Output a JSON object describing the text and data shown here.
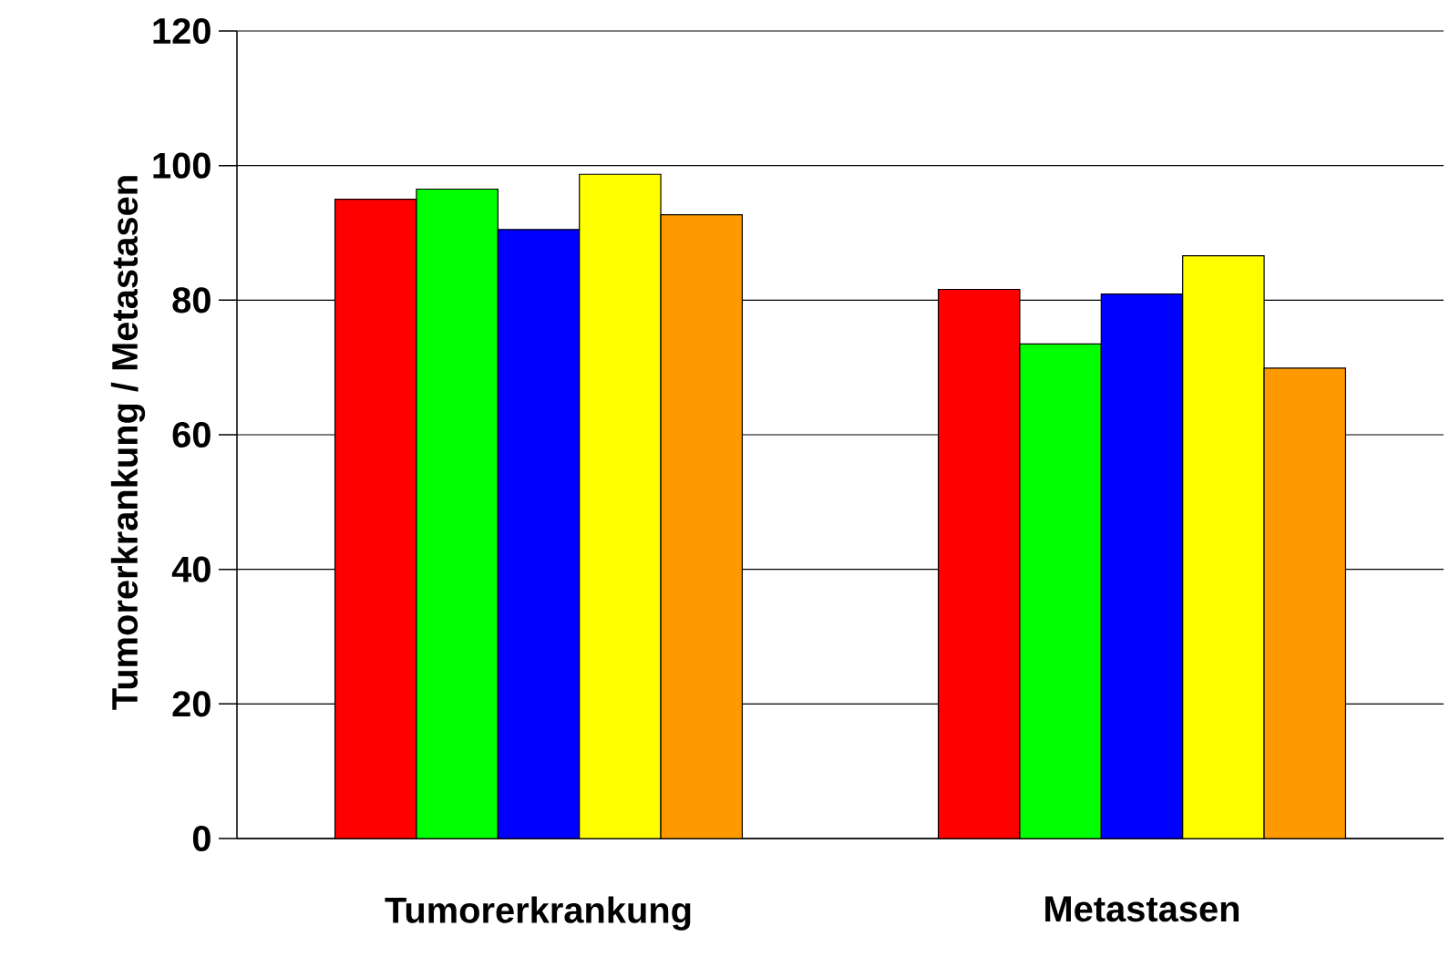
{
  "chart_data": {
    "type": "bar",
    "ylabel": "Tumorerkrankung / Metastasen",
    "categories": [
      "Tumorerkrankung",
      "Metastasen"
    ],
    "series": [
      {
        "color": "#ff0000",
        "values": [
          95,
          81.6
        ]
      },
      {
        "color": "#00ff00",
        "values": [
          96.5,
          73.5
        ]
      },
      {
        "color": "#0000ff",
        "values": [
          90.5,
          80.9
        ]
      },
      {
        "color": "#ffff00",
        "values": [
          98.7,
          86.6
        ]
      },
      {
        "color": "#ff9900",
        "values": [
          92.7,
          69.9
        ]
      }
    ],
    "ylim": [
      0,
      120
    ],
    "yticks": [
      0,
      20,
      40,
      60,
      80,
      100,
      120
    ],
    "grid": "y"
  }
}
